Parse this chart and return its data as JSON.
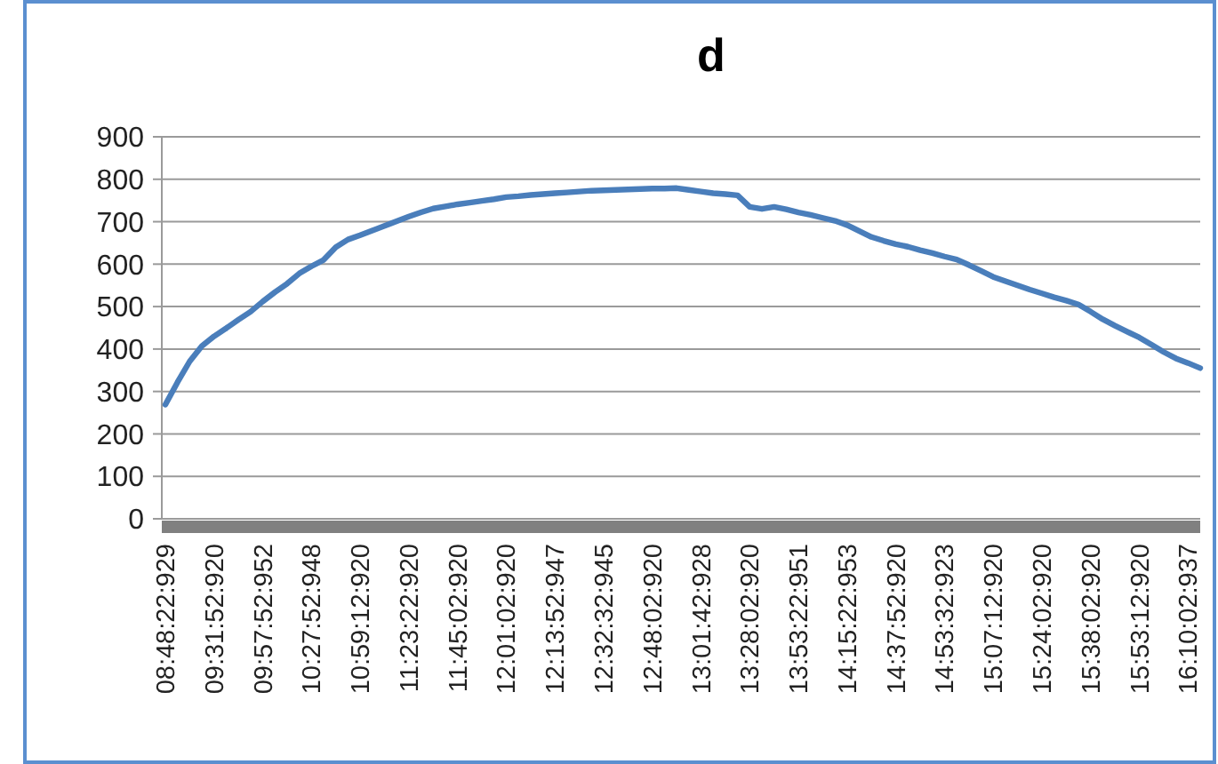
{
  "chart_data": {
    "type": "line",
    "title": "d",
    "categories": [
      "08:48:22:929",
      null,
      null,
      null,
      "09:31:52:920",
      null,
      null,
      null,
      "09:57:52:952",
      null,
      null,
      null,
      "10:27:52:948",
      null,
      null,
      null,
      "10:59:12:920",
      null,
      null,
      null,
      "11:23:22:920",
      null,
      null,
      null,
      "11:45:02:920",
      null,
      null,
      null,
      "12:01:02:920",
      null,
      null,
      null,
      "12:13:52:947",
      null,
      null,
      null,
      "12:32:32:945",
      null,
      null,
      null,
      "12:48:02:920",
      null,
      null,
      null,
      "13:01:42:928",
      null,
      null,
      null,
      "13:28:02:920",
      null,
      null,
      null,
      "13:53:22:951",
      null,
      null,
      null,
      "14:15:22:953",
      null,
      null,
      null,
      "14:37:52:920",
      null,
      null,
      null,
      "14:53:32:923",
      null,
      null,
      null,
      "15:07:12:920",
      null,
      null,
      null,
      "15:24:02:920",
      null,
      null,
      null,
      "15:38:02:920",
      null,
      null,
      null,
      "15:53:12:920",
      null,
      null,
      null,
      "16:10:02:937",
      null
    ],
    "series": [
      {
        "color": "#4a7ebb",
        "values": [
          269,
          322,
          371,
          407,
          430,
          449,
          469,
          488,
          512,
          534,
          554,
          578,
          595,
          610,
          640,
          658,
          668,
          679,
          690,
          701,
          712,
          722,
          731,
          736,
          741,
          745,
          749,
          753,
          758,
          760,
          763,
          765,
          767,
          769,
          771,
          773,
          774,
          775,
          776,
          777,
          778,
          778,
          779,
          775,
          771,
          767,
          765,
          762,
          735,
          730,
          735,
          729,
          722,
          716,
          709,
          702,
          692,
          678,
          664,
          655,
          647,
          641,
          633,
          626,
          618,
          611,
          598,
          584,
          570,
          560,
          550,
          540,
          531,
          522,
          514,
          505,
          488,
          470,
          455,
          441,
          427,
          410,
          393,
          378,
          367,
          355
        ]
      }
    ],
    "ylim": [
      0,
      900
    ],
    "yticks": [
      0,
      100,
      200,
      300,
      400,
      500,
      600,
      700,
      800,
      900
    ],
    "grid": "y",
    "marker": "none",
    "line_style": "solid"
  }
}
